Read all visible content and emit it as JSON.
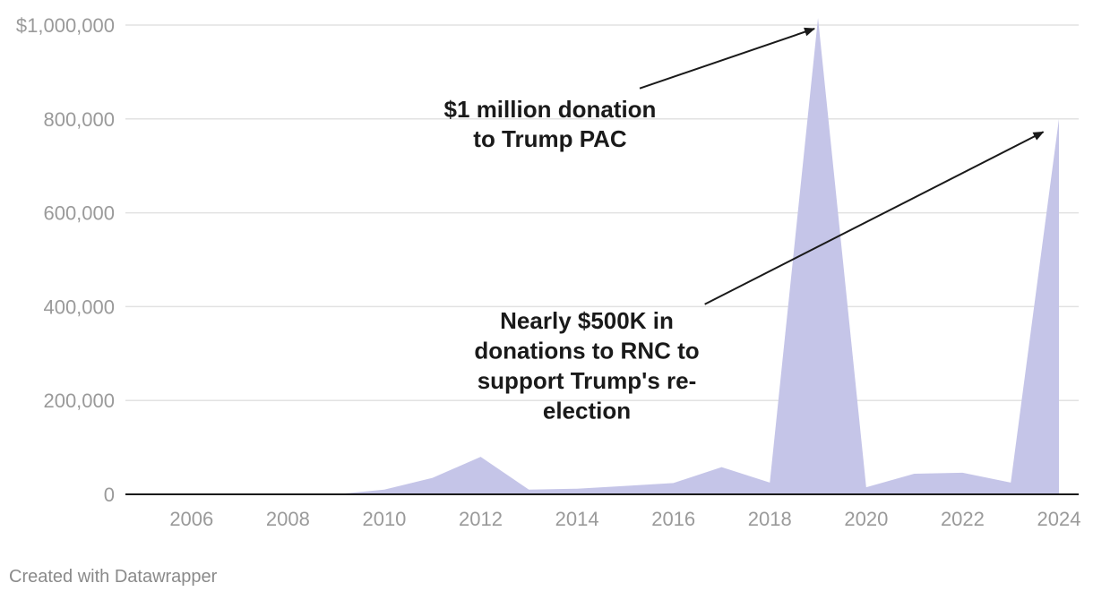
{
  "chart_data": {
    "type": "area",
    "title": "",
    "xlabel": "",
    "ylabel": "",
    "x": [
      2005,
      2006,
      2007,
      2008,
      2009,
      2010,
      2011,
      2012,
      2013,
      2014,
      2015,
      2016,
      2017,
      2018,
      2019,
      2020,
      2021,
      2022,
      2023,
      2024
    ],
    "series": [
      {
        "values": [
          0,
          0,
          0,
          0,
          0,
          10000,
          35000,
          80000,
          10000,
          12000,
          18000,
          24000,
          58000,
          25000,
          1015000,
          15000,
          44000,
          46000,
          25000,
          800000
        ]
      }
    ],
    "xlim": [
      2005,
      2024
    ],
    "ylim": [
      0,
      1000000
    ],
    "x_ticks": [
      2006,
      2008,
      2010,
      2012,
      2014,
      2016,
      2018,
      2020,
      2022,
      2024
    ],
    "y_ticks": [
      {
        "value": 0,
        "label": "0"
      },
      {
        "value": 200000,
        "label": "200,000"
      },
      {
        "value": 400000,
        "label": "400,000"
      },
      {
        "value": 600000,
        "label": "600,000"
      },
      {
        "value": 800000,
        "label": "800,000"
      },
      {
        "value": 1000000,
        "label": "$1,000,000"
      }
    ],
    "grid": true,
    "fill_color": "#c5c5e8",
    "annotations": [
      {
        "lines": [
          "$1 million donation",
          "to Trump PAC"
        ],
        "target": {
          "x": 2019,
          "y": 1000000
        },
        "from": {
          "x": 2015.3,
          "y": 865000
        }
      },
      {
        "lines": [
          "Nearly $500K in",
          "donations to RNC to",
          "support Trump's re-",
          "election"
        ],
        "target": {
          "x": 2023.75,
          "y": 780000
        },
        "from": {
          "x": 2016.65,
          "y": 405000
        }
      }
    ]
  },
  "colors": {
    "area": "#c5c5e8",
    "grid": "#e2e2e2",
    "axis": "#1a1a1a",
    "tick_text": "#9a9a9a",
    "annotation_text": "#1a1a1a"
  },
  "footer": {
    "credit": "Created with Datawrapper"
  }
}
